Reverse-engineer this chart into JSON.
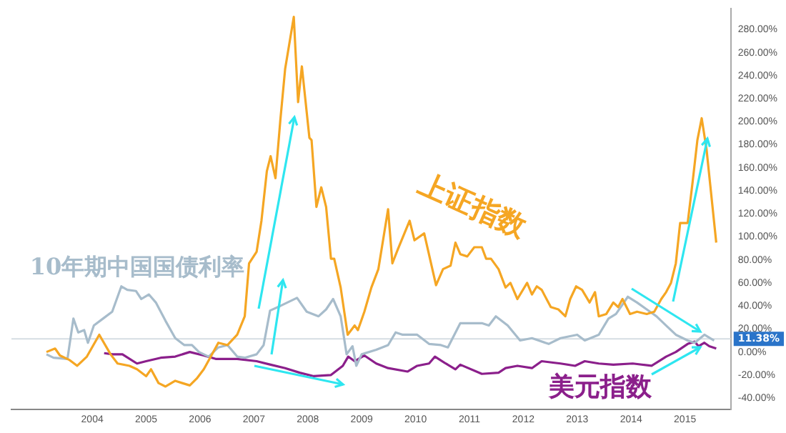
{
  "chart_data": {
    "type": "line",
    "xlim": [
      2002.5,
      2015.85
    ],
    "xticks": [
      2004,
      2005,
      2006,
      2007,
      2008,
      2009,
      2010,
      2011,
      2012,
      2013,
      2014,
      2015
    ],
    "ylim": [
      -50,
      298
    ],
    "yticks": [
      {
        "value": -40,
        "label": "-40.00%"
      },
      {
        "value": -20,
        "label": "-20.00%"
      },
      {
        "value": 0,
        "label": "0.00%"
      },
      {
        "value": 20,
        "label": "20.00%"
      },
      {
        "value": 40,
        "label": "40.00%"
      },
      {
        "value": 60,
        "label": "60.00%"
      },
      {
        "value": 80,
        "label": "80.00%"
      },
      {
        "value": 100,
        "label": "100.00%"
      },
      {
        "value": 120,
        "label": "120.00%"
      },
      {
        "value": 140,
        "label": "140.00%"
      },
      {
        "value": 160,
        "label": "160.00%"
      },
      {
        "value": 180,
        "label": "180.00%"
      },
      {
        "value": 200,
        "label": "200.00%"
      },
      {
        "value": 220,
        "label": "220.00%"
      },
      {
        "value": 240,
        "label": "240.00%"
      },
      {
        "value": 260,
        "label": "260.00%"
      },
      {
        "value": 280,
        "label": "280.00%"
      }
    ],
    "grid": false,
    "legend": false,
    "marker": "none",
    "line_style": "solid",
    "ref_lines": [
      {
        "axis": "y",
        "value": 11.38,
        "label": "11.38%",
        "color": "#d5dde3"
      }
    ],
    "series": [
      {
        "name": "上证指数",
        "color": "#f5a623",
        "x": [
          2003.15,
          2003.31,
          2003.4,
          2003.58,
          2003.72,
          2003.9,
          2004.13,
          2004.34,
          2004.47,
          2004.69,
          2004.83,
          2005.0,
          2005.09,
          2005.23,
          2005.36,
          2005.54,
          2005.67,
          2005.81,
          2005.94,
          2006.07,
          2006.2,
          2006.34,
          2006.51,
          2006.69,
          2006.83,
          2006.91,
          2007.05,
          2007.14,
          2007.24,
          2007.31,
          2007.4,
          2007.49,
          2007.58,
          2007.74,
          2007.82,
          2007.89,
          2008.03,
          2008.07,
          2008.16,
          2008.25,
          2008.34,
          2008.43,
          2008.49,
          2008.61,
          2008.74,
          2008.87,
          2008.93,
          2009.05,
          2009.18,
          2009.31,
          2009.49,
          2009.57,
          2009.67,
          2009.89,
          2009.98,
          2010.16,
          2010.38,
          2010.51,
          2010.65,
          2010.74,
          2010.83,
          2010.96,
          2011.09,
          2011.23,
          2011.31,
          2011.4,
          2011.54,
          2011.67,
          2011.76,
          2011.89,
          2012.07,
          2012.16,
          2012.25,
          2012.34,
          2012.51,
          2012.65,
          2012.78,
          2012.87,
          2012.98,
          2013.09,
          2013.23,
          2013.33,
          2013.4,
          2013.54,
          2013.67,
          2013.76,
          2013.84,
          2013.98,
          2014.11,
          2014.29,
          2014.43,
          2014.56,
          2014.65,
          2014.74,
          2014.83,
          2014.91,
          2015.05,
          2015.14,
          2015.23,
          2015.31,
          2015.4,
          2015.58
        ],
        "values": [
          0,
          3,
          -3,
          -7,
          -12,
          -4,
          15,
          -2,
          -10,
          -12,
          -15,
          -21,
          -15,
          -27,
          -30,
          -25,
          -27,
          -29,
          -23,
          -15,
          -4,
          8,
          6,
          15,
          31,
          77,
          87,
          114,
          157,
          170,
          151,
          201,
          246,
          291,
          217,
          248,
          186,
          184,
          126,
          143,
          126,
          81,
          81,
          56,
          15,
          23,
          19,
          35,
          56,
          72,
          124,
          77,
          89,
          114,
          97,
          103,
          58,
          72,
          75,
          95,
          85,
          83,
          91,
          91,
          81,
          81,
          72,
          56,
          60,
          46,
          60,
          50,
          57,
          54,
          39,
          37,
          31,
          46,
          57,
          54,
          43,
          52,
          31,
          33,
          43,
          39,
          46,
          33,
          35,
          33,
          35,
          46,
          52,
          60,
          77,
          112,
          112,
          147,
          184,
          203,
          176,
          95
        ]
      },
      {
        "name": "10年期中国国债利率",
        "color": "#a7bccb",
        "x": [
          2003.15,
          2003.28,
          2003.54,
          2003.65,
          2003.74,
          2003.85,
          2003.92,
          2004.03,
          2004.2,
          2004.37,
          2004.54,
          2004.65,
          2004.81,
          2004.91,
          2005.05,
          2005.18,
          2005.36,
          2005.54,
          2005.71,
          2005.85,
          2005.98,
          2006.16,
          2006.34,
          2006.51,
          2006.69,
          2006.83,
          2007.05,
          2007.18,
          2007.3,
          2007.49,
          2007.8,
          2007.98,
          2008.2,
          2008.34,
          2008.47,
          2008.61,
          2008.72,
          2008.83,
          2008.9,
          2009.0,
          2009.27,
          2009.49,
          2009.63,
          2009.76,
          2010.03,
          2010.25,
          2010.47,
          2010.6,
          2010.83,
          2011.23,
          2011.36,
          2011.49,
          2011.71,
          2011.94,
          2012.16,
          2012.47,
          2012.69,
          2013.0,
          2013.14,
          2013.4,
          2013.58,
          2013.72,
          2013.94,
          2014.11,
          2014.29,
          2014.47,
          2014.65,
          2014.83,
          2015.05,
          2015.18,
          2015.36,
          2015.54
        ],
        "values": [
          -2,
          -5,
          -6,
          29,
          17,
          19,
          8,
          23,
          29,
          35,
          57,
          54,
          53,
          46,
          50,
          43,
          27,
          12,
          6,
          6,
          0,
          -4,
          4,
          6,
          -4,
          -5,
          -2,
          6,
          36,
          40,
          47,
          35,
          31,
          37,
          46,
          31,
          -2,
          5,
          -12,
          -2,
          2,
          6,
          17,
          15,
          15,
          7,
          6,
          4,
          25,
          25,
          23,
          31,
          23,
          10,
          12,
          7,
          12,
          15,
          10,
          15,
          29,
          33,
          48,
          43,
          37,
          31,
          23,
          15,
          10,
          8,
          15,
          10
        ]
      },
      {
        "name": "美元指数",
        "color": "#8b1f8b",
        "x": [
          2004.22,
          2004.38,
          2004.56,
          2004.83,
          2005.0,
          2005.27,
          2005.54,
          2005.81,
          2006.07,
          2006.29,
          2006.69,
          2007.05,
          2007.31,
          2007.58,
          2007.85,
          2008.11,
          2008.43,
          2008.65,
          2008.75,
          2008.87,
          2009.05,
          2009.27,
          2009.49,
          2009.85,
          2010.03,
          2010.25,
          2010.36,
          2010.56,
          2010.74,
          2010.83,
          2011.23,
          2011.54,
          2011.67,
          2011.89,
          2012.16,
          2012.34,
          2012.69,
          2012.96,
          2013.14,
          2013.4,
          2013.67,
          2014.03,
          2014.38,
          2014.65,
          2014.83,
          2015.05,
          2015.18,
          2015.25,
          2015.36,
          2015.45,
          2015.58
        ],
        "values": [
          -1,
          -2,
          -2,
          -10,
          -8,
          -5,
          -4,
          0,
          -3,
          -6,
          -6,
          -8,
          -11,
          -14,
          -18,
          -21,
          -20,
          -12,
          -4,
          -8,
          -3,
          -10,
          -14,
          -17,
          -12,
          -10,
          -4,
          -10,
          -15,
          -11,
          -19,
          -18,
          -14,
          -12,
          -14,
          -8,
          -10,
          -12,
          -8,
          -10,
          -11,
          -10,
          -12,
          -4,
          0,
          7,
          9,
          5,
          8,
          5,
          3
        ]
      }
    ]
  }
}
